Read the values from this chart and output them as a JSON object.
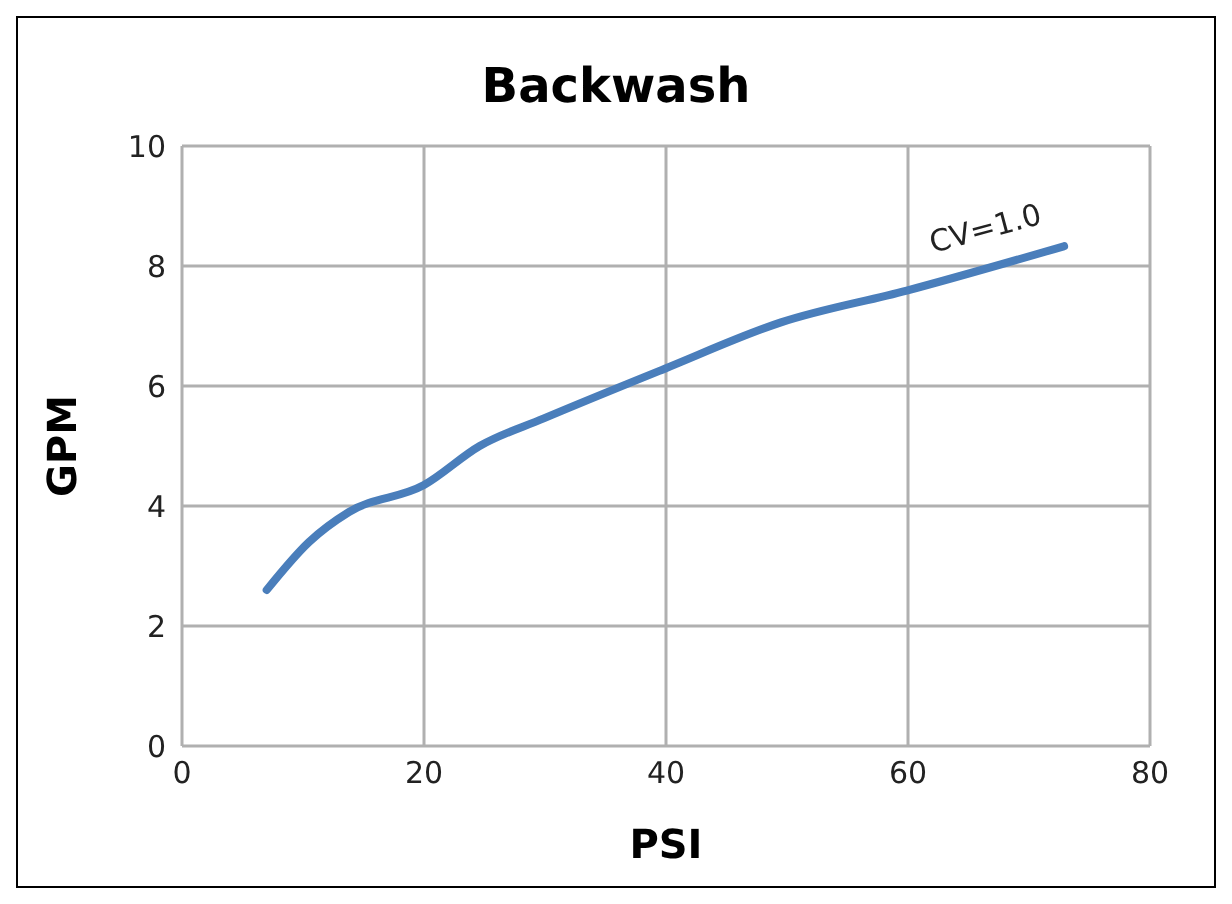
{
  "chart_data": {
    "type": "line",
    "title": "Backwash",
    "xlabel": "PSI",
    "ylabel": "GPM",
    "series": [
      {
        "color": "#4a7ebb",
        "x": [
          7,
          10.5,
          13.8,
          20,
          24.6,
          29.9,
          39.8,
          49.5,
          59.9,
          72.9
        ],
        "values": [
          2.6,
          3.4,
          3.9,
          4.35,
          5.0,
          5.46,
          6.28,
          7.06,
          7.59,
          8.33
        ]
      }
    ],
    "annotations": [
      "CV=1.0"
    ],
    "xlim": [
      0,
      80
    ],
    "xticks": [
      0,
      20,
      40,
      60,
      80
    ],
    "ylim": [
      0,
      10
    ],
    "yticks": [
      0,
      2,
      4,
      6,
      8,
      10
    ],
    "grid": true,
    "legend": false,
    "marker": "none",
    "line_style": "solid"
  }
}
